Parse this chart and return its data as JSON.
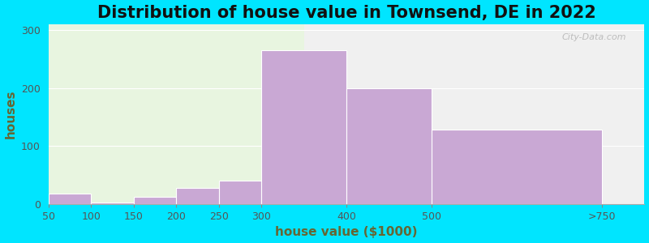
{
  "title": "Distribution of house value in Townsend, DE in 2022",
  "xlabel": "house value ($1000)",
  "ylabel": "houses",
  "tick_labels": [
    "50",
    "100",
    "150",
    "200",
    "250",
    "300",
    "400",
    "500",
    ">750"
  ],
  "tick_positions": [
    0,
    1,
    2,
    3,
    4,
    5,
    7,
    9,
    13
  ],
  "bar_lefts": [
    0,
    1,
    2,
    3,
    4,
    5,
    7,
    9
  ],
  "bar_widths": [
    1,
    1,
    1,
    1,
    1,
    2,
    2,
    4
  ],
  "values": [
    18,
    3,
    13,
    28,
    40,
    265,
    200,
    128
  ],
  "bar_color": "#c9a8d4",
  "bg_color_left": "#e8f5e0",
  "bg_color_right": "#f0f0f0",
  "bg_split_x": 6,
  "figure_bg": "#00e5ff",
  "ylim": [
    0,
    310
  ],
  "xlim": [
    0,
    14
  ],
  "yticks": [
    0,
    100,
    200,
    300
  ],
  "title_fontsize": 15,
  "axis_label_fontsize": 11,
  "tick_fontsize": 9,
  "xlabel_color": "#666633",
  "ylabel_color": "#666633",
  "tick_color": "#555555",
  "watermark": "City-Data.com"
}
